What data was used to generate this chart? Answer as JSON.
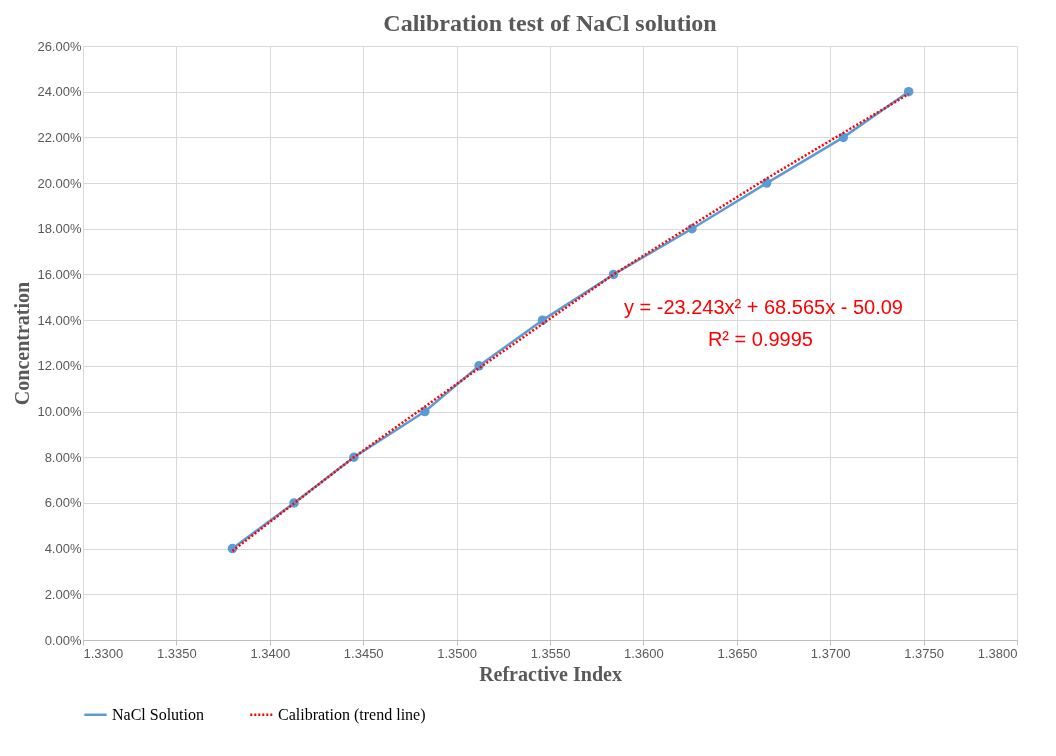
{
  "chart_data": {
    "type": "line",
    "title": "Calibration  test of NaCl solution",
    "xlabel": "Refractive Index",
    "ylabel": "Concentration",
    "x": [
      1.338,
      1.3413,
      1.3445,
      1.3483,
      1.3512,
      1.3546,
      1.3584,
      1.3626,
      1.3666,
      1.3707,
      1.3742
    ],
    "series": [
      {
        "name": "NaCl Solution",
        "color": "#5b9bd5",
        "values": [
          4,
          6,
          8,
          10,
          12,
          14,
          16,
          18,
          20,
          22,
          24
        ],
        "marker": "circle",
        "line_style": "solid"
      },
      {
        "name": "Calibration (trend line)",
        "type": "line",
        "color": "#ff0000",
        "x": [
          1.338,
          1.3445,
          1.3512,
          1.3584,
          1.3666,
          1.3742
        ],
        "values": [
          3.9,
          8.0,
          11.9,
          16.0,
          20.2,
          23.9
        ],
        "marker": "none",
        "line_style": "dotted"
      }
    ],
    "annotations": [
      "y = -23.243x² + 68.565x - 50.09",
      "R² = 0.9995"
    ],
    "xlim": [
      1.33,
      1.38
    ],
    "xticks": [
      {
        "value": 1.33,
        "label": "1.3300"
      },
      {
        "value": 1.335,
        "label": "1.3350"
      },
      {
        "value": 1.34,
        "label": "1.3400"
      },
      {
        "value": 1.345,
        "label": "1.3450"
      },
      {
        "value": 1.35,
        "label": "1.3500"
      },
      {
        "value": 1.355,
        "label": "1.3550"
      },
      {
        "value": 1.36,
        "label": "1.3600"
      },
      {
        "value": 1.365,
        "label": "1.3650"
      },
      {
        "value": 1.37,
        "label": "1.3700"
      },
      {
        "value": 1.375,
        "label": "1.3750"
      },
      {
        "value": 1.38,
        "label": "1.3800"
      }
    ],
    "ylim": [
      0,
      26
    ],
    "yticks": [
      {
        "value": 0,
        "label": "0.00%"
      },
      {
        "value": 2,
        "label": "2.00%"
      },
      {
        "value": 4,
        "label": "4.00%"
      },
      {
        "value": 6,
        "label": "6.00%"
      },
      {
        "value": 8,
        "label": "8.00%"
      },
      {
        "value": 10,
        "label": "10.00%"
      },
      {
        "value": 12,
        "label": "12.00%"
      },
      {
        "value": 14,
        "label": "14.00%"
      },
      {
        "value": 16,
        "label": "16.00%"
      },
      {
        "value": 18,
        "label": "18.00%"
      },
      {
        "value": 20,
        "label": "20.00%"
      },
      {
        "value": 22,
        "label": "22.00%"
      },
      {
        "value": 24,
        "label": "24.00%"
      },
      {
        "value": 26,
        "label": "26.00%"
      }
    ],
    "grid": true,
    "legend": "bottom"
  }
}
